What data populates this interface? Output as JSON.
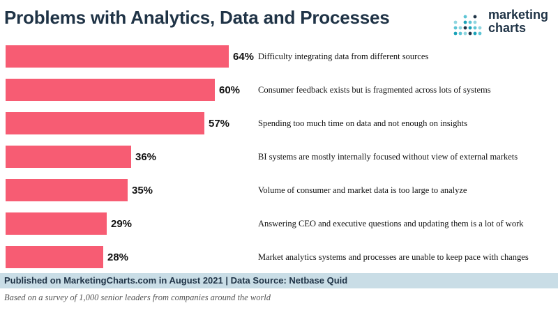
{
  "header": {
    "title": "Problems with Analytics, Data and Processes"
  },
  "logo": {
    "line1": "marketing",
    "line2": "charts",
    "dot_colors": [
      "#1aa2b8",
      "#5cc4d4",
      "#8fd6e0",
      "#1f3346"
    ]
  },
  "chart_data": {
    "type": "bar",
    "orientation": "horizontal",
    "categories": [
      "Difficulty integrating data from different sources",
      "Consumer feedback exists but is fragmented across lots of systems",
      "Spending too much time on data and not enough on insights",
      "BI systems are mostly internally focused without view of external markets",
      "Volume of consumer and market data is too large to analyze",
      "Answering CEO and executive questions and updating them is a lot of work",
      "Market analytics systems and processes are unable to keep pace with changes"
    ],
    "values": [
      64,
      60,
      57,
      36,
      35,
      29,
      28
    ],
    "data_labels": [
      "64%",
      "60%",
      "57%",
      "36%",
      "35%",
      "29%",
      "28%"
    ],
    "xlim": [
      0,
      100
    ],
    "grid": false,
    "bar_color": "#f75c73",
    "text_color": "#111111"
  },
  "footer": {
    "source": "Published on MarketingCharts.com in August 2021 | Data Source: Netbase Quid",
    "note": "Based on a survey of 1,000 senior leaders from companies around the world"
  }
}
